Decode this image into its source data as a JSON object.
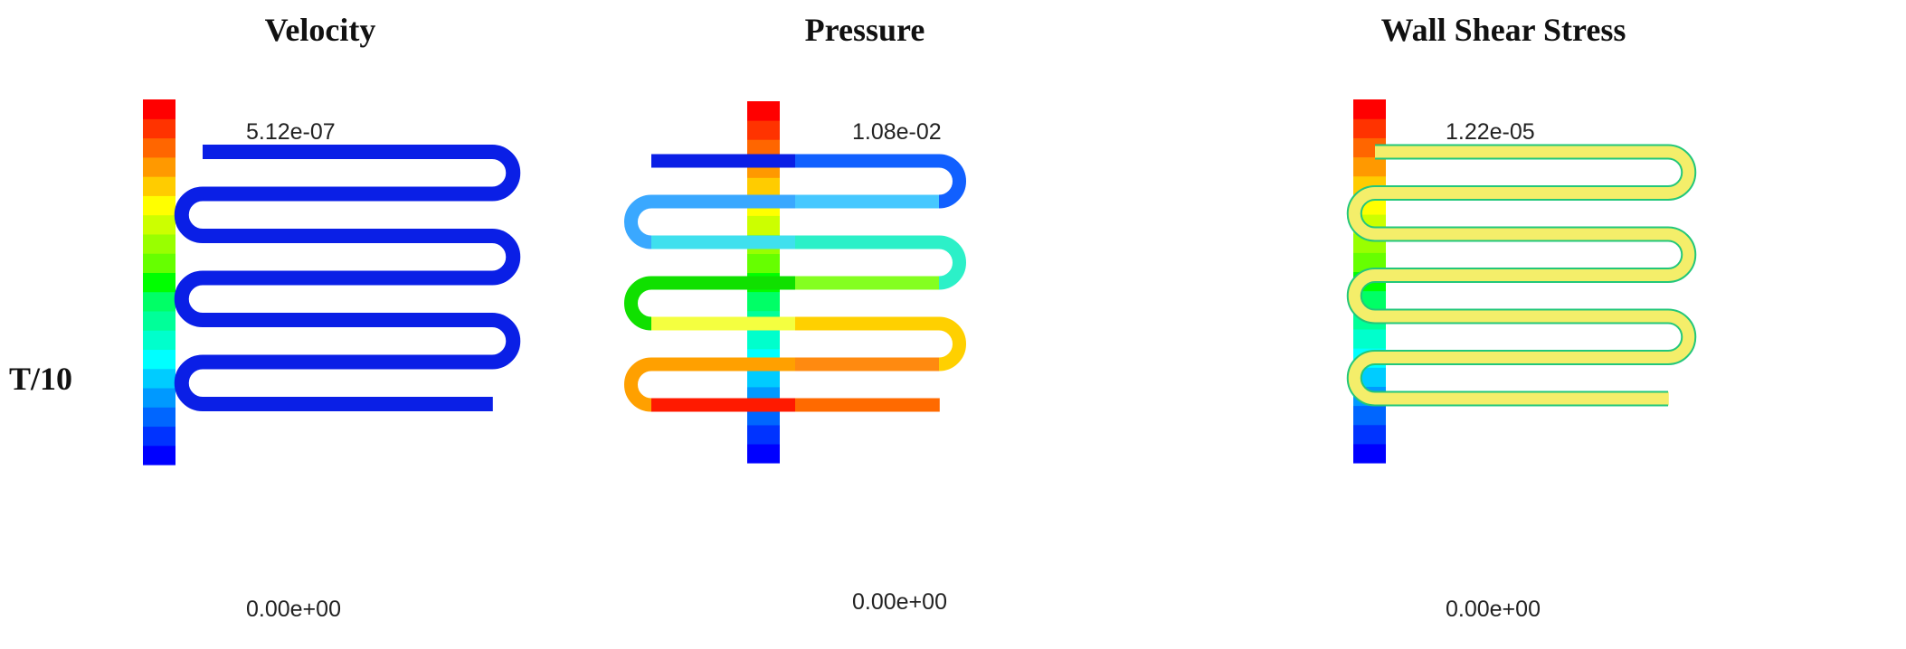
{
  "titles": {
    "velocity": "Velocity",
    "pressure": "Pressure",
    "wss": "Wall Shear Stress"
  },
  "row_label": "T/10",
  "panels": {
    "velocity": {
      "max": "5.12e-07",
      "min": "0.00e+00"
    },
    "pressure": {
      "max": "1.08e-02",
      "min": "0.00e+00"
    },
    "wss": {
      "max": "1.22e-05",
      "min": "0.00e+00"
    }
  },
  "colorbar_colors": [
    "#0000ff",
    "#0033ff",
    "#0066ff",
    "#0099ff",
    "#00ccff",
    "#00ffff",
    "#00ffcc",
    "#00ff99",
    "#00ff66",
    "#00ff00",
    "#66ff00",
    "#99ff00",
    "#ccff00",
    "#ffff00",
    "#ffcc00",
    "#ff9900",
    "#ff6600",
    "#ff3300",
    "#ff0000"
  ],
  "colors": {
    "velocity_field": "#0a1fe6",
    "wss_field": "#f4ee6a",
    "wss_edge": "#22c77a",
    "pressure_segments": [
      [
        "#0a1fe6",
        "#1160ff"
      ],
      [
        "#3aa8ff",
        "#46c8ff"
      ],
      [
        "#3fe0ee",
        "#2cf0c8"
      ],
      [
        "#10e000",
        "#84ff20"
      ],
      [
        "#f4ff40",
        "#ffd000"
      ],
      [
        "#ffa000",
        "#ff8a10"
      ],
      [
        "#ff1a00",
        "#ff6a00"
      ]
    ]
  }
}
